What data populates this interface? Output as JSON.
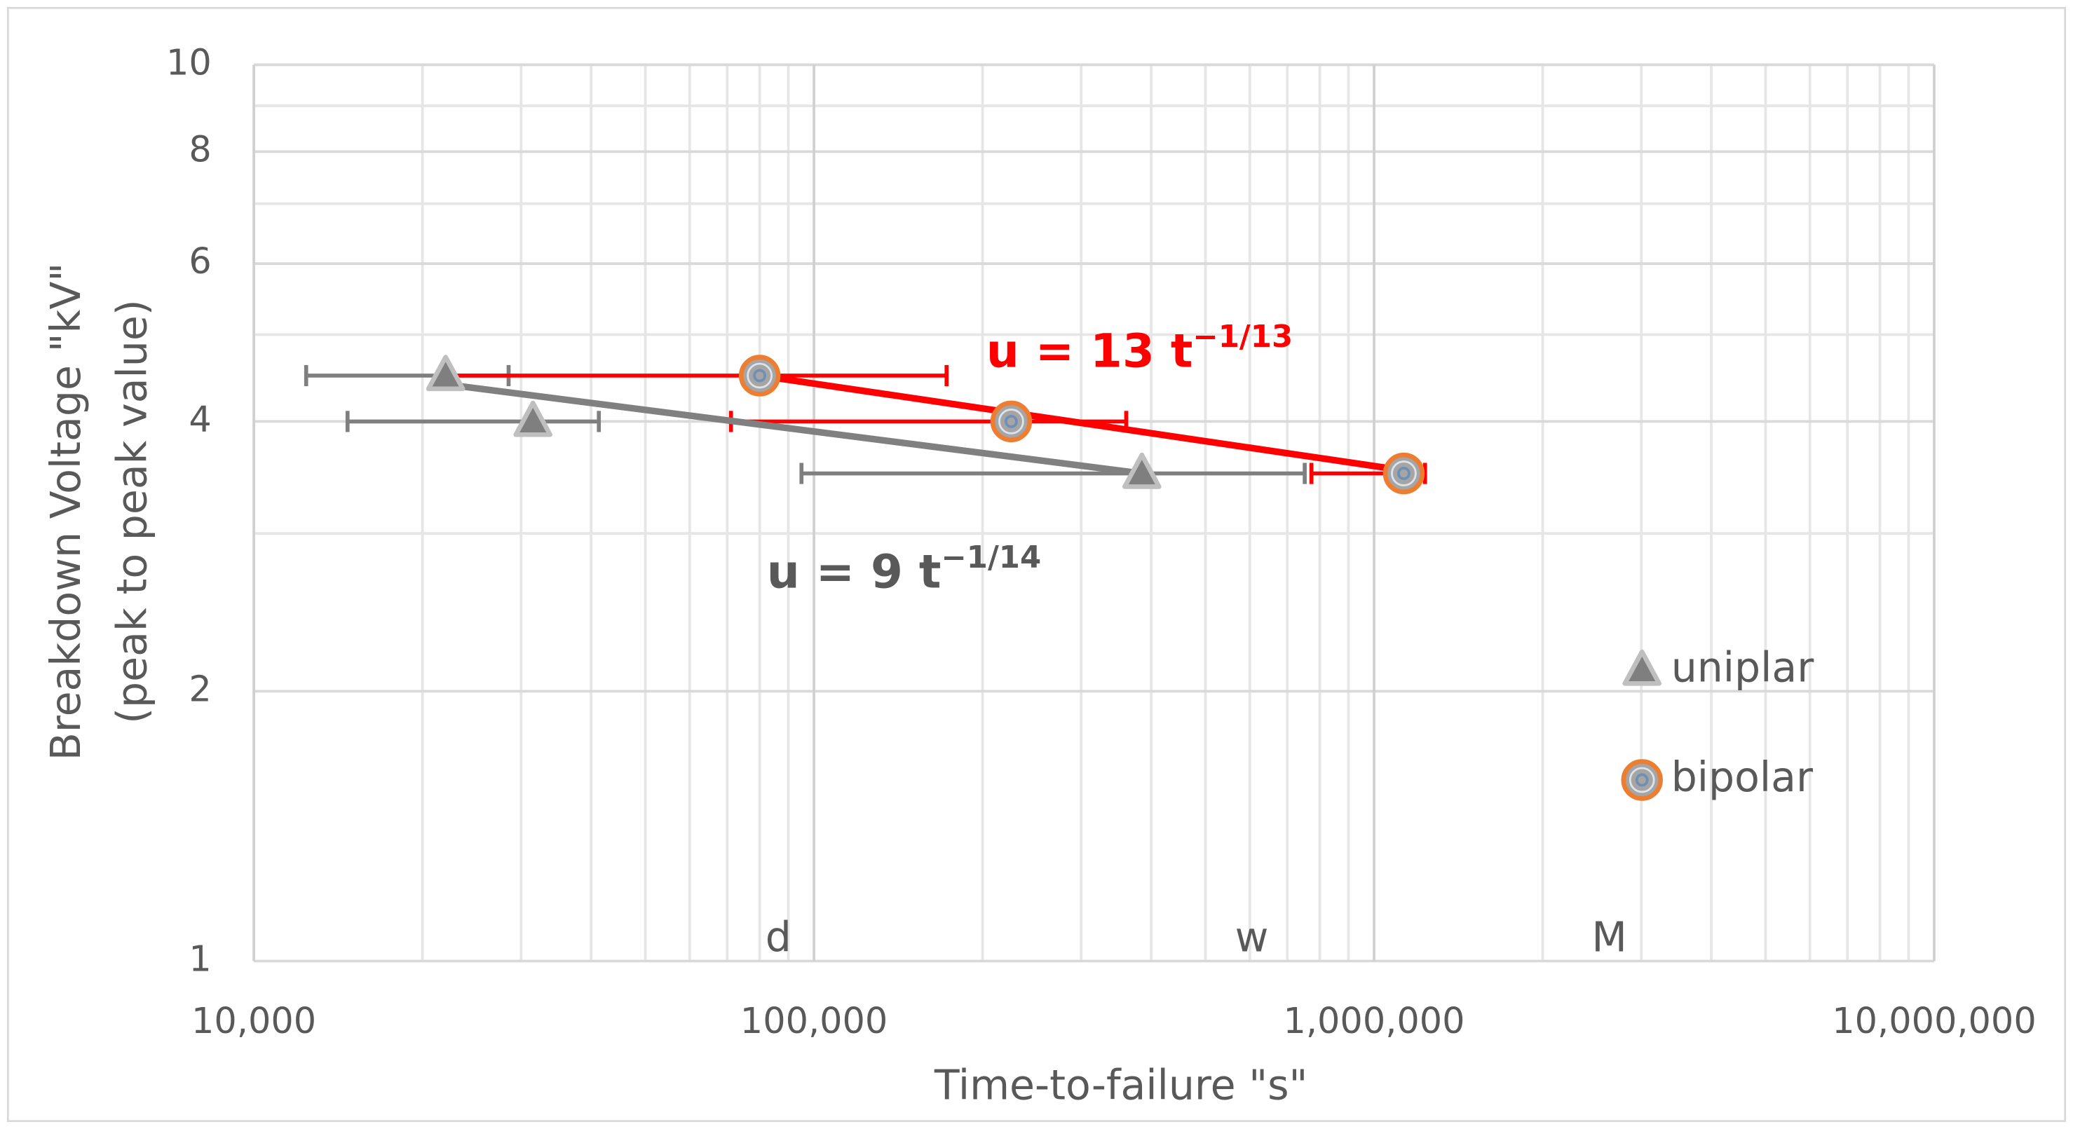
{
  "chart_data": {
    "type": "scatter",
    "xlabel": "Time-to-failure \"s\"",
    "ylabel": [
      "Breakdown Voltage \"kV\"",
      "(peak to peak value)"
    ],
    "xscale": "log",
    "yscale": "log",
    "xlim": [
      10000,
      10000000
    ],
    "ylim": [
      1,
      10
    ],
    "xticks": [
      {
        "value": 10000,
        "label": "10,000"
      },
      {
        "value": 100000,
        "label": "100,000"
      },
      {
        "value": 1000000,
        "label": "1,000,000"
      },
      {
        "value": 10000000,
        "label": "10,000,000"
      }
    ],
    "yticks": [
      1,
      2,
      4,
      6,
      8,
      10
    ],
    "y_minor_ticks": [
      3,
      5,
      7,
      9
    ],
    "grid": true,
    "minor_grid": true,
    "legend": "right",
    "series": [
      {
        "name": "uniplar",
        "color": "#7f7f7f",
        "marker": "triangle",
        "x": [
          22000,
          31500,
          385000
        ],
        "values": [
          4.5,
          4.0,
          3.5
        ],
        "x_err_low": [
          12400,
          14700,
          95000
        ],
        "x_err_high": [
          28500,
          41300,
          752000
        ]
      },
      {
        "name": "bipolar",
        "color": "#ed7d31",
        "marker": "circle",
        "x": [
          80000,
          225000,
          1130000
        ],
        "values": [
          4.5,
          4.0,
          3.5
        ],
        "x_err_low": [
          22300,
          71100,
          773000
        ],
        "x_err_high": [
          172500,
          361000,
          1233000
        ]
      }
    ],
    "trendlines": [
      {
        "color": "#808080",
        "x": [
          22000,
          385000
        ],
        "values": [
          4.4,
          3.5
        ],
        "label": "u = 9 t",
        "exponent": "−1/14"
      },
      {
        "color": "#ff0000",
        "x": [
          80000,
          1230000
        ],
        "values": [
          4.5,
          3.5
        ],
        "label": "u = 13 t",
        "exponent": "−1/13"
      }
    ],
    "annotations": [
      {
        "x": 86400,
        "text": "d"
      },
      {
        "x": 604800,
        "text": "w"
      },
      {
        "x": 2630000,
        "text": "M"
      }
    ]
  }
}
